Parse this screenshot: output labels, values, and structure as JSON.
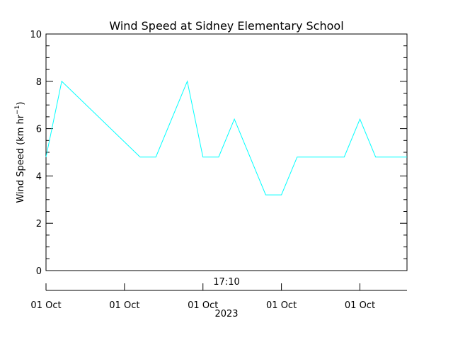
{
  "chart_data": {
    "type": "line",
    "title": "Wind Speed at Sidney Elementary School",
    "ylabel": "Wind Speed (km hr",
    "ylabel_exponent": "−1",
    "ylabel_close": ")",
    "ylim": [
      0,
      10
    ],
    "y_ticks": [
      0,
      2,
      4,
      6,
      8,
      10
    ],
    "y_tick_labels": [
      "0",
      "2",
      "4",
      "6",
      "8",
      "10"
    ],
    "x_center_label": "17:10",
    "x_tick_labels": [
      "01 Oct",
      "01 Oct",
      "01 Oct",
      "01 Oct",
      "01 Oct"
    ],
    "x_year_label": "2023",
    "grid": false,
    "series": [
      {
        "color": "#00ffff",
        "x": [
          0,
          1,
          6,
          7,
          9,
          10,
          11,
          12,
          14,
          15,
          16,
          19,
          20,
          21,
          23
        ],
        "y": [
          4.8,
          8.0,
          4.8,
          4.8,
          8.0,
          4.8,
          4.8,
          6.4,
          3.2,
          3.2,
          4.8,
          4.8,
          6.4,
          4.8,
          4.8
        ]
      }
    ],
    "xlim": [
      0,
      23
    ],
    "x_major_ticks": [
      0,
      5,
      10,
      15,
      20
    ]
  }
}
